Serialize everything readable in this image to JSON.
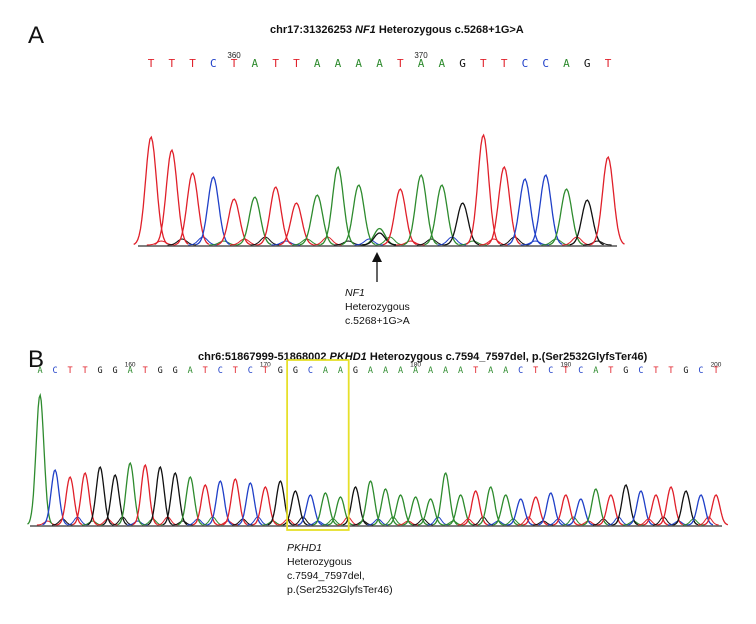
{
  "panel_a": {
    "letter": "A",
    "title_prefix": "chr17:31326253 ",
    "title_gene": "NF1",
    "title_suffix": " Heterozygous c.5268+1G>A",
    "bases": [
      "T",
      "T",
      "T",
      "C",
      "T",
      "A",
      "T",
      "T",
      "A",
      "A",
      "A",
      "A",
      "T",
      "A",
      "A",
      "G",
      "T",
      "T",
      "C",
      "C",
      "A",
      "G",
      "T"
    ],
    "position_labels": [
      {
        "base_index": 4,
        "text": "360"
      },
      {
        "base_index": 13,
        "text": "370"
      }
    ],
    "peaks": [
      "T",
      "T",
      "T",
      "C",
      "T",
      "A",
      "T",
      "T",
      "A",
      "A",
      "A",
      "AG",
      "T",
      "A",
      "A",
      "G",
      "T",
      "T",
      "C",
      "C",
      "A",
      "G",
      "T"
    ],
    "annotation": {
      "gene": "NF1",
      "line2": "Heterozygous",
      "line3": "c.5268+1G>A"
    }
  },
  "panel_b": {
    "letter": "B",
    "title_prefix": "chr6:51867999-51868002 ",
    "title_gene": "PKHD1",
    "title_suffix": " Heterozygous c.7594_7597del, p.(Ser2532GlyfsTer46)",
    "bases": [
      "A",
      "C",
      "T",
      "T",
      "G",
      "G",
      "A",
      "T",
      "G",
      "G",
      "A",
      "T",
      "C",
      "T",
      "C",
      "T",
      "G",
      "G",
      "C",
      "A",
      "A",
      "G",
      "A",
      "A",
      "A",
      "A",
      "A",
      "A",
      "A",
      "T",
      "A",
      "A",
      "C",
      "T",
      "C",
      "T",
      "C",
      "A",
      "T",
      "G",
      "C",
      "T",
      "T",
      "G",
      "C",
      "T"
    ],
    "position_labels": [
      {
        "base_index": 6,
        "text": "160"
      },
      {
        "base_index": 15,
        "text": "170"
      },
      {
        "base_index": 25,
        "text": "180"
      },
      {
        "base_index": 35,
        "text": "190"
      },
      {
        "base_index": 45,
        "text": "200"
      }
    ],
    "highlight": {
      "from_index": 17,
      "to_index": 20,
      "color": "#e6e02a"
    },
    "annotation": {
      "gene": "PKHD1",
      "line2": "Heterozygous",
      "line3": "c.7594_7597del,",
      "line4": "p.(Ser2532GlyfsTer46)"
    }
  },
  "colors": {
    "A": "#2e8b2e",
    "C": "#2040c8",
    "G": "#111111",
    "T": "#e0202a"
  }
}
